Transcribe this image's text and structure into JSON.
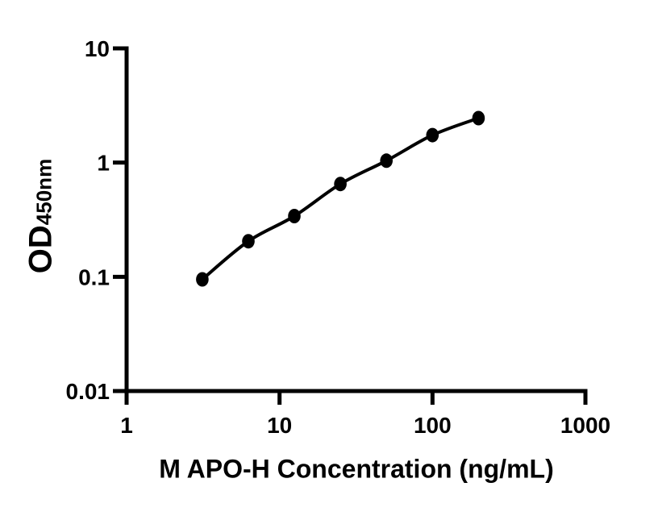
{
  "chart_data": {
    "type": "line",
    "title": "",
    "xlabel": "M APO-H Concentration (ng/mL)",
    "ylabel": "OD450nm",
    "ylabel_main": "OD",
    "ylabel_sub": "450nm",
    "x_scale": "log10",
    "y_scale": "log10",
    "xlim": [
      1,
      1000
    ],
    "ylim": [
      0.01,
      10
    ],
    "x_ticks": [
      1,
      10,
      100,
      1000
    ],
    "x_tick_labels": [
      "1",
      "10",
      "100",
      "1000"
    ],
    "y_ticks": [
      10,
      1,
      0.1,
      0.01
    ],
    "y_tick_labels": [
      "10",
      "1",
      "0.1",
      "0.01"
    ],
    "grid": false,
    "legend": false,
    "axis_color": "#000000",
    "background": "#ffffff",
    "series": [
      {
        "marker": "filled-circle",
        "color": "#000000",
        "x": [
          3.125,
          6.25,
          12.5,
          25,
          50,
          100,
          200
        ],
        "y": [
          0.095,
          0.205,
          0.34,
          0.65,
          1.04,
          1.74,
          2.45
        ]
      }
    ]
  }
}
